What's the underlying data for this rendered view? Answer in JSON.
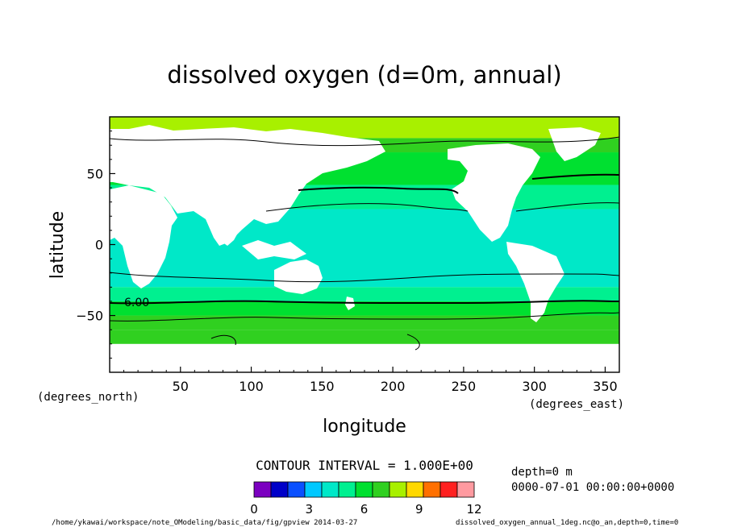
{
  "chart_data": {
    "type": "heatmap",
    "title": "dissolved oxygen (d=0m, annual)",
    "xlabel": "longitude",
    "ylabel": "latitude",
    "x_unit_label": "(degrees_east)",
    "y_unit_label": "(degrees_north)",
    "xlim": [
      0,
      360
    ],
    "ylim": [
      -90,
      90
    ],
    "x_ticks": [
      50,
      100,
      150,
      200,
      250,
      300,
      350
    ],
    "y_ticks": [
      50,
      0,
      -50
    ],
    "contour_label": "6.00",
    "contour_interval_text": "CONTOUR INTERVAL = 1.000E+00",
    "colorbar": {
      "levels": [
        0,
        1,
        2,
        3,
        4,
        5,
        6,
        7,
        8,
        9,
        10,
        11,
        12
      ],
      "tick_labels": [
        "0",
        "3",
        "6",
        "9",
        "12"
      ],
      "colors": [
        "#7b00c0",
        "#0000c8",
        "#0a50ff",
        "#00c8ff",
        "#00e8c8",
        "#00f090",
        "#00e030",
        "#30d020",
        "#a8f000",
        "#ffd800",
        "#ff7000",
        "#ff2020",
        "#ff9aa0"
      ]
    },
    "zonal_bands": [
      {
        "lat_min": 75,
        "lat_max": 90,
        "value": 8.5
      },
      {
        "lat_min": 65,
        "lat_max": 75,
        "value": 7.5
      },
      {
        "lat_min": 42,
        "lat_max": 65,
        "value": 6.5
      },
      {
        "lat_min": 25,
        "lat_max": 42,
        "value": 5.5
      },
      {
        "lat_min": -30,
        "lat_max": 25,
        "value": 4.6
      },
      {
        "lat_min": -40,
        "lat_max": -30,
        "value": 5.5
      },
      {
        "lat_min": -50,
        "lat_max": -40,
        "value": 6.5
      },
      {
        "lat_min": -60,
        "lat_max": -50,
        "value": 7.5
      },
      {
        "lat_min": -70,
        "lat_max": -60,
        "value": 7.8
      }
    ]
  },
  "info": {
    "depth": "depth=0 m",
    "time": "0000-07-01 00:00:00+0000"
  },
  "footer": {
    "left": "/home/ykawai/workspace/note_OModeling/basic_data/fig/gpview   2014-03-27",
    "right": "dissolved_oxygen_annual_1deg.nc@o_an,depth=0,time=0"
  }
}
